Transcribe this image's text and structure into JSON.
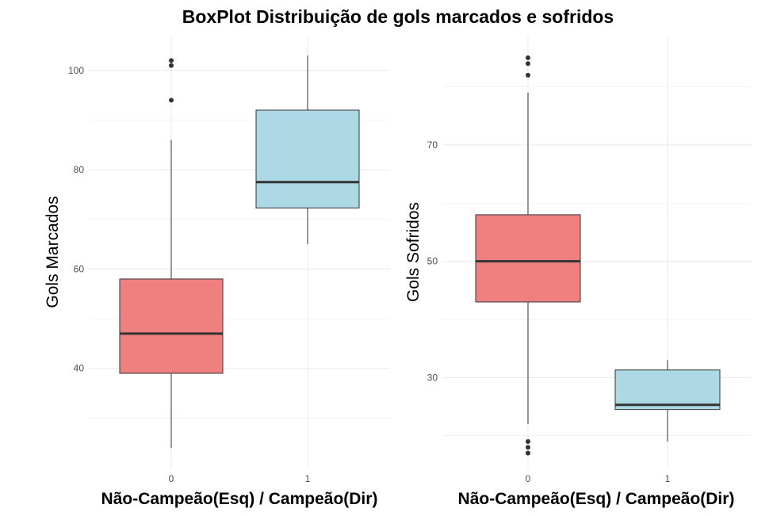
{
  "chart_data": {
    "title": "BoxPlot Distribuição de gols marcados e sofridos",
    "type": "boxplot",
    "colors": {
      "group_0": "#F08080",
      "group_1": "#ADD8E6",
      "median": "#333333",
      "whisker": "#333333",
      "grid": "#ebebeb"
    },
    "panels": [
      {
        "xlabel": "Não-Campeão(Esq) / Campeão(Dir)",
        "ylabel": "Gols Marcados",
        "categories": [
          "0",
          "1"
        ],
        "ylim": [
          20,
          107
        ],
        "yticks": [
          40,
          60,
          80,
          100
        ],
        "grid": true,
        "boxes": [
          {
            "category": "0",
            "whisker_low": 24,
            "q1": 39,
            "median": 47,
            "q3": 58,
            "whisker_high": 86,
            "outliers": [
              94,
              101,
              102
            ]
          },
          {
            "category": "1",
            "whisker_low": 65,
            "q1": 72.3,
            "median": 77.5,
            "q3": 92,
            "whisker_high": 103,
            "outliers": []
          }
        ]
      },
      {
        "xlabel": "Não-Campeão(Esq) / Campeão(Dir)",
        "ylabel": "Gols Sofridos",
        "categories": [
          "0",
          "1"
        ],
        "ylim": [
          14.5,
          88.8
        ],
        "yticks": [
          30,
          50,
          70
        ],
        "grid": true,
        "boxes": [
          {
            "category": "0",
            "whisker_low": 22,
            "q1": 43,
            "median": 50,
            "q3": 58,
            "whisker_high": 79,
            "outliers": [
              17,
              18,
              19,
              82,
              84,
              85
            ]
          },
          {
            "category": "1",
            "whisker_low": 19,
            "q1": 24.5,
            "median": 25.3,
            "q3": 31.3,
            "whisker_high": 33,
            "outliers": []
          }
        ]
      }
    ]
  }
}
